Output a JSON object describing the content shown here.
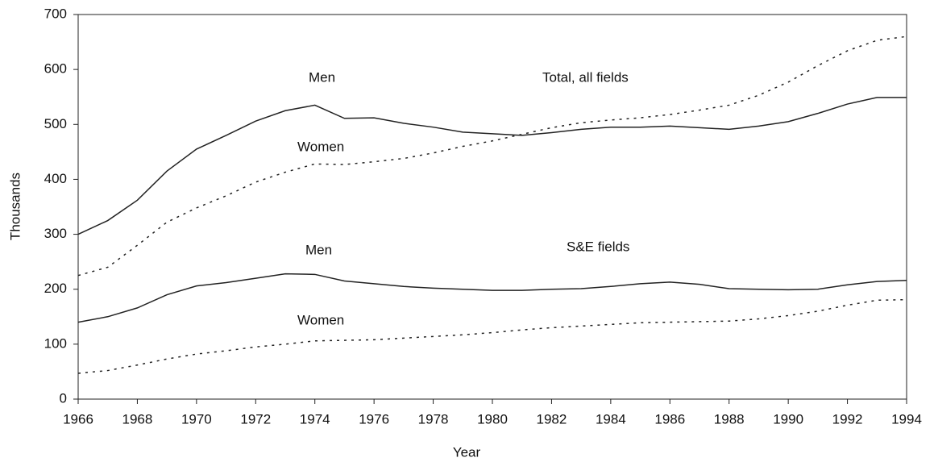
{
  "chart_data": {
    "type": "line",
    "x_label": "Year",
    "y_label": "Thousands",
    "annotations": [
      "Men",
      "Total, all fields",
      "Women",
      "Men",
      "S&E fields",
      "Women"
    ],
    "x": [
      1966,
      1967,
      1968,
      1969,
      1970,
      1971,
      1972,
      1973,
      1974,
      1975,
      1976,
      1977,
      1978,
      1979,
      1980,
      1981,
      1982,
      1983,
      1984,
      1985,
      1986,
      1987,
      1988,
      1989,
      1990,
      1991,
      1992,
      1993,
      1994
    ],
    "series": [
      {
        "color": "#222222",
        "dashed": false,
        "values": [
          300,
          325,
          362,
          415,
          455,
          480,
          506,
          525,
          535,
          511,
          512,
          502,
          495,
          486,
          483,
          480,
          485,
          491,
          495,
          495,
          497,
          494,
          491,
          497,
          505,
          520,
          537,
          549,
          549
        ]
      },
      {
        "color": "#222222",
        "dashed": true,
        "values": [
          225,
          240,
          280,
          322,
          348,
          370,
          395,
          413,
          428,
          427,
          432,
          438,
          448,
          460,
          470,
          482,
          494,
          503,
          508,
          512,
          518,
          526,
          535,
          553,
          577,
          607,
          634,
          653,
          660
        ]
      },
      {
        "color": "#222222",
        "dashed": false,
        "values": [
          140,
          150,
          166,
          190,
          206,
          212,
          220,
          228,
          227,
          215,
          210,
          205,
          202,
          200,
          198,
          198,
          200,
          201,
          205,
          210,
          213,
          209,
          201,
          200,
          199,
          200,
          208,
          214,
          216
        ]
      },
      {
        "color": "#222222",
        "dashed": true,
        "values": [
          47,
          52,
          62,
          73,
          82,
          88,
          95,
          100,
          106,
          107,
          108,
          111,
          114,
          117,
          121,
          126,
          130,
          133,
          136,
          139,
          140,
          141,
          142,
          146,
          152,
          160,
          171,
          180,
          181
        ]
      }
    ],
    "xlim": [
      1966,
      1994
    ],
    "xticks": [
      1966,
      1968,
      1970,
      1972,
      1974,
      1976,
      1978,
      1980,
      1982,
      1984,
      1986,
      1988,
      1990,
      1992,
      1994
    ],
    "ylim": [
      0,
      700
    ],
    "yticks": [
      0,
      100,
      200,
      300,
      400,
      500,
      600,
      700
    ],
    "grid": false
  }
}
